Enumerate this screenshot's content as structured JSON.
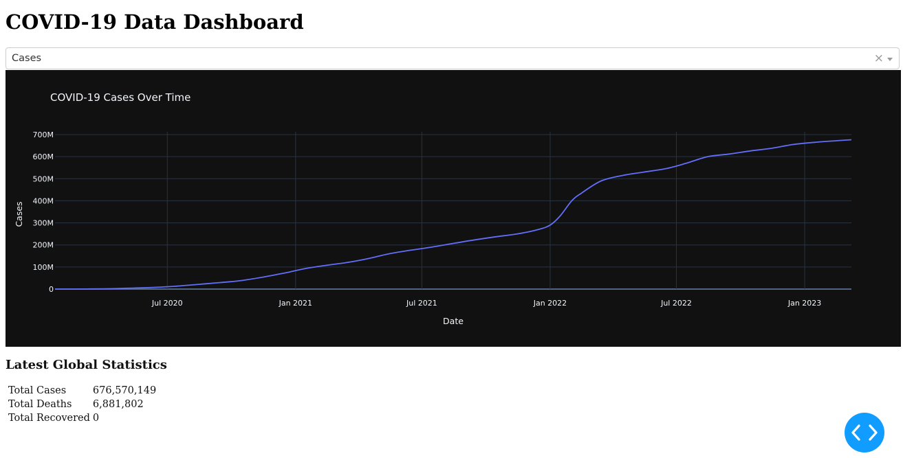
{
  "page": {
    "title": "COVID-19 Data Dashboard"
  },
  "dropdown": {
    "selected": "Cases",
    "clear_glyph": "×"
  },
  "chart_data": {
    "type": "line",
    "title": "COVID-19 Cases Over Time",
    "xlabel": "Date",
    "ylabel": "Cases",
    "x_tick_labels": [
      "Jul 2020",
      "Jan 2021",
      "Jul 2021",
      "Jan 2022",
      "Jul 2022",
      "Jan 2023"
    ],
    "y_tick_labels": [
      "0",
      "100M",
      "200M",
      "300M",
      "400M",
      "500M",
      "600M",
      "700M"
    ],
    "ylim": [
      0,
      700000000
    ],
    "xlim": [
      "2020-01-22",
      "2023-03-09"
    ],
    "grid": true,
    "theme": "dark",
    "background_color": "#111111",
    "line_color": "#636efa",
    "grid_color": "#283442",
    "series": [
      {
        "x": [
          "2020-01-22",
          "2020-02-15",
          "2020-03-15",
          "2020-04-15",
          "2020-05-15",
          "2020-06-15",
          "2020-07-15",
          "2020-08-15",
          "2020-09-15",
          "2020-10-15",
          "2020-11-15",
          "2020-12-15",
          "2021-01-15",
          "2021-02-15",
          "2021-03-15",
          "2021-04-15",
          "2021-05-15",
          "2021-06-15",
          "2021-07-15",
          "2021-08-15",
          "2021-09-15",
          "2021-10-15",
          "2021-11-15",
          "2021-12-15",
          "2022-01-01",
          "2022-01-15",
          "2022-02-01",
          "2022-02-15",
          "2022-03-15",
          "2022-04-15",
          "2022-05-15",
          "2022-06-15",
          "2022-07-15",
          "2022-08-15",
          "2022-09-15",
          "2022-10-15",
          "2022-11-15",
          "2022-12-15",
          "2023-01-15",
          "2023-02-15",
          "2023-03-09"
        ],
        "y": [
          0,
          100000,
          500000,
          2000000,
          4600000,
          8000000,
          13400000,
          21400000,
          29500000,
          38500000,
          54000000,
          72000000,
          93000000,
          108000000,
          120000000,
          138000000,
          160000000,
          176000000,
          190000000,
          207000000,
          223000000,
          237000000,
          250000000,
          270000000,
          290000000,
          330000000,
          400000000,
          435000000,
          490000000,
          515000000,
          530000000,
          545000000,
          570000000,
          600000000,
          612000000,
          626000000,
          638000000,
          655000000,
          665000000,
          672000000,
          676570149
        ]
      }
    ]
  },
  "stats": {
    "heading": "Latest Global Statistics",
    "rows": [
      {
        "label": "Total Cases",
        "value": "676,570,149"
      },
      {
        "label": "Total Deaths",
        "value": "6,881,802"
      },
      {
        "label": "Total Recovered",
        "value": "0"
      }
    ]
  },
  "code_toggle": {
    "icon": "code-chevrons-icon",
    "color": "#119dff"
  }
}
